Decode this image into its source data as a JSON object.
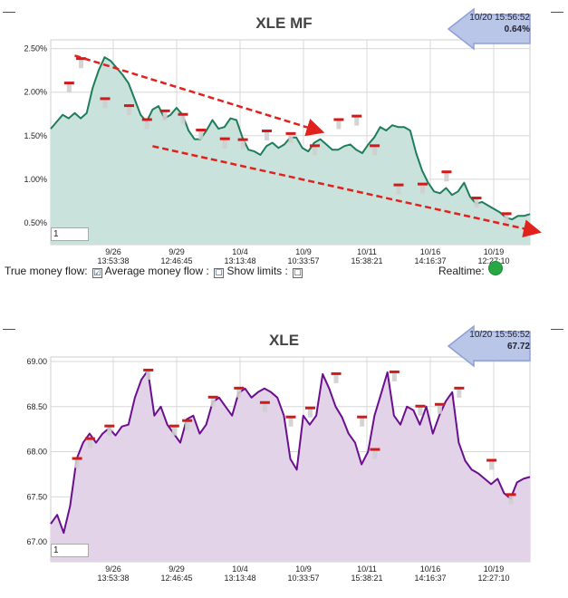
{
  "chart_data": [
    {
      "type": "area",
      "title": "XLE MF",
      "x_tick_labels": [
        {
          "date": "9/26",
          "time": "13:53:38"
        },
        {
          "date": "9/29",
          "time": "12:46:45"
        },
        {
          "date": "10/4",
          "time": "13:13:48"
        },
        {
          "date": "10/9",
          "time": "10:33:57"
        },
        {
          "date": "10/11",
          "time": "15:38:21"
        },
        {
          "date": "10/16",
          "time": "14:16:37"
        },
        {
          "date": "10/19",
          "time": "12:27:10"
        }
      ],
      "y_tick_labels": [
        "0.50%",
        "1.00%",
        "1.50%",
        "2.00%",
        "2.50%"
      ],
      "y_ticks": [
        0.5,
        1.0,
        1.5,
        2.0,
        2.5
      ],
      "ylim": [
        0.25,
        2.6
      ],
      "series": [
        {
          "values": [
            1.58,
            1.66,
            1.74,
            1.7,
            1.76,
            1.7,
            1.76,
            2.05,
            2.25,
            2.4,
            2.36,
            2.28,
            2.2,
            2.1,
            1.92,
            1.74,
            1.66,
            1.8,
            1.84,
            1.7,
            1.74,
            1.82,
            1.74,
            1.56,
            1.46,
            1.46,
            1.56,
            1.68,
            1.58,
            1.6,
            1.7,
            1.68,
            1.48,
            1.34,
            1.32,
            1.28,
            1.38,
            1.42,
            1.36,
            1.4,
            1.48,
            1.48,
            1.36,
            1.32,
            1.42,
            1.46,
            1.4,
            1.34,
            1.34,
            1.38,
            1.4,
            1.34,
            1.3,
            1.4,
            1.48,
            1.6,
            1.56,
            1.62,
            1.6,
            1.6,
            1.56,
            1.3,
            1.1,
            0.96,
            0.86,
            0.84,
            0.9,
            0.82,
            0.86,
            0.96,
            0.8,
            0.72,
            0.74,
            0.7,
            0.66,
            0.62,
            0.56,
            0.54,
            0.58,
            0.58,
            0.6
          ]
        }
      ],
      "trendlines": [
        {
          "from": [
            4,
            2.42
          ],
          "to": [
            45,
            1.55
          ]
        },
        {
          "from": [
            17,
            1.38
          ],
          "to": [
            80,
            0.4
          ]
        }
      ],
      "markers": [
        {
          "i": 3,
          "v": 2.1
        },
        {
          "i": 5,
          "v": 2.38
        },
        {
          "i": 9,
          "v": 1.92
        },
        {
          "i": 13,
          "v": 1.84
        },
        {
          "i": 16,
          "v": 1.68
        },
        {
          "i": 19,
          "v": 1.78
        },
        {
          "i": 22,
          "v": 1.74
        },
        {
          "i": 25,
          "v": 1.56
        },
        {
          "i": 29,
          "v": 1.46
        },
        {
          "i": 32,
          "v": 1.45
        },
        {
          "i": 36,
          "v": 1.55
        },
        {
          "i": 40,
          "v": 1.52
        },
        {
          "i": 44,
          "v": 1.38
        },
        {
          "i": 48,
          "v": 1.68
        },
        {
          "i": 51,
          "v": 1.72
        },
        {
          "i": 54,
          "v": 1.38
        },
        {
          "i": 58,
          "v": 0.93
        },
        {
          "i": 62,
          "v": 0.94
        },
        {
          "i": 66,
          "v": 1.08
        },
        {
          "i": 71,
          "v": 0.78
        },
        {
          "i": 76,
          "v": 0.6
        }
      ],
      "line_color": "#1e7d5a",
      "fill_color": "#c9e2dc",
      "trendline_color": "#e0211c",
      "grid": true,
      "input_value": "1"
    },
    {
      "type": "area",
      "title": "XLE",
      "x_tick_labels": [
        {
          "date": "9/26",
          "time": "13:53:38"
        },
        {
          "date": "9/29",
          "time": "12:46:45"
        },
        {
          "date": "10/4",
          "time": "13:13:48"
        },
        {
          "date": "10/9",
          "time": "10:33:57"
        },
        {
          "date": "10/11",
          "time": "15:38:21"
        },
        {
          "date": "10/16",
          "time": "14:16:37"
        },
        {
          "date": "10/19",
          "time": "12:27:10"
        }
      ],
      "y_tick_labels": [
        "67.00",
        "67.50",
        "68.00",
        "68.50",
        "69.00"
      ],
      "y_ticks": [
        67.0,
        67.5,
        68.0,
        68.5,
        69.0
      ],
      "ylim": [
        66.78,
        69.05
      ],
      "series": [
        {
          "values": [
            67.2,
            67.3,
            67.1,
            67.4,
            67.92,
            68.1,
            68.2,
            68.1,
            68.2,
            68.26,
            68.18,
            68.28,
            68.3,
            68.6,
            68.8,
            68.9,
            68.4,
            68.5,
            68.3,
            68.2,
            68.1,
            68.36,
            68.4,
            68.2,
            68.3,
            68.55,
            68.6,
            68.5,
            68.4,
            68.65,
            68.7,
            68.6,
            68.66,
            68.7,
            68.66,
            68.6,
            68.4,
            67.92,
            67.8,
            68.4,
            68.3,
            68.4,
            68.86,
            68.7,
            68.5,
            68.38,
            68.2,
            68.1,
            67.86,
            68.0,
            68.4,
            68.64,
            68.88,
            68.4,
            68.3,
            68.5,
            68.46,
            68.3,
            68.5,
            68.2,
            68.4,
            68.56,
            68.66,
            68.1,
            67.9,
            67.8,
            67.76,
            67.7,
            67.64,
            67.7,
            67.54,
            67.48,
            67.66,
            67.7,
            67.72
          ]
        }
      ],
      "markers": [
        {
          "i": 4,
          "v": 67.92
        },
        {
          "i": 6,
          "v": 68.14
        },
        {
          "i": 9,
          "v": 68.28
        },
        {
          "i": 15,
          "v": 68.9
        },
        {
          "i": 19,
          "v": 68.28
        },
        {
          "i": 21,
          "v": 68.34
        },
        {
          "i": 25,
          "v": 68.6
        },
        {
          "i": 29,
          "v": 68.7
        },
        {
          "i": 33,
          "v": 68.54
        },
        {
          "i": 37,
          "v": 68.38
        },
        {
          "i": 40,
          "v": 68.48
        },
        {
          "i": 44,
          "v": 68.86
        },
        {
          "i": 48,
          "v": 68.38
        },
        {
          "i": 50,
          "v": 68.02
        },
        {
          "i": 53,
          "v": 68.88
        },
        {
          "i": 57,
          "v": 68.5
        },
        {
          "i": 60,
          "v": 68.52
        },
        {
          "i": 63,
          "v": 68.7
        },
        {
          "i": 68,
          "v": 67.9
        },
        {
          "i": 71,
          "v": 67.52
        }
      ],
      "line_color": "#6a0f8e",
      "fill_color": "#e2d3e9",
      "grid": true,
      "input_value": "1"
    }
  ],
  "realtime_mf": {
    "datetime": "10/20 15:56:52",
    "value": "0.64%"
  },
  "realtime_px": {
    "datetime": "10/20 15:56:52",
    "value": "67.72"
  },
  "controls": {
    "true_mf_label": "True money flow:",
    "true_mf_check": "☑",
    "avg_mf_label": "Average money flow :",
    "avg_mf_check": "☐",
    "show_limits_label": "Show limits :",
    "show_limits_check": "☐",
    "realtime_label": "Realtime:"
  },
  "colors": {
    "arrow_fill": "#b9c6e8",
    "arrow_stroke": "#8e9fd6",
    "realtime_dot": "#27a844"
  }
}
